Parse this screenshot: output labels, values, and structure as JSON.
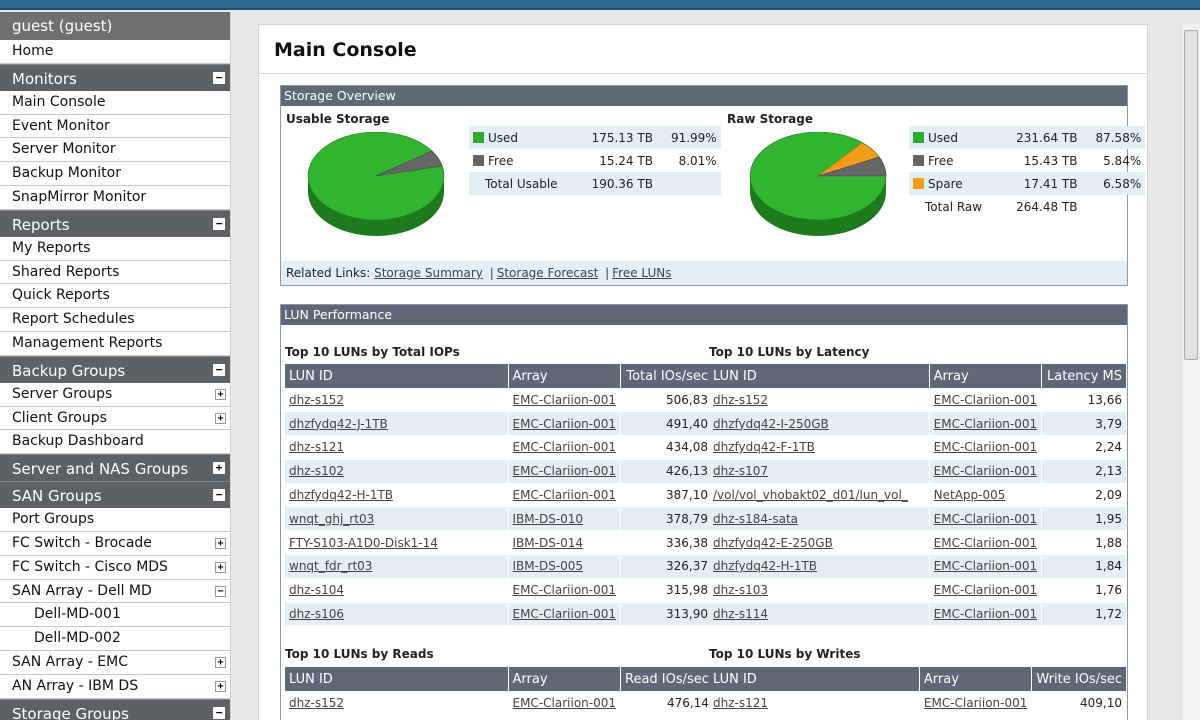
{
  "sidebar": {
    "user": "guest (guest)",
    "home": "Home",
    "monitors": {
      "title": "Monitors",
      "toggle": "−",
      "items": [
        "Main Console",
        "Event Monitor",
        "Server Monitor",
        "Backup Monitor",
        "SnapMirror Monitor"
      ]
    },
    "reports": {
      "title": "Reports",
      "toggle": "−",
      "items": [
        "My Reports",
        "Shared Reports",
        "Quick Reports",
        "Report Schedules",
        "Management Reports"
      ]
    },
    "backup_groups": {
      "title": "Backup Groups",
      "toggle": "−",
      "items": [
        {
          "label": "Server Groups",
          "toggle": "+"
        },
        {
          "label": "Client Groups",
          "toggle": "+"
        },
        {
          "label": "Backup Dashboard",
          "toggle": ""
        }
      ]
    },
    "server_nas": {
      "title": "Server and NAS Groups",
      "toggle": "+"
    },
    "san_groups": {
      "title": "SAN Groups",
      "toggle": "−",
      "items": [
        {
          "label": "Port Groups",
          "toggle": ""
        },
        {
          "label": "FC Switch - Brocade",
          "toggle": "+"
        },
        {
          "label": "FC Switch - Cisco MDS",
          "toggle": "+"
        },
        {
          "label": "SAN Array - Dell MD",
          "toggle": "−"
        },
        {
          "label": "Dell-MD-001",
          "toggle": "",
          "sub": true
        },
        {
          "label": "Dell-MD-002",
          "toggle": "",
          "sub": true
        },
        {
          "label": "SAN Array - EMC",
          "toggle": "+"
        },
        {
          "label": "AN Array - IBM DS",
          "toggle": "+"
        }
      ]
    },
    "storage_groups": {
      "title": "Storage Groups",
      "toggle": "−"
    }
  },
  "main": {
    "title": "Main Console",
    "storage": {
      "header": "Storage Overview",
      "usable": {
        "title": "Usable Storage",
        "rows": [
          {
            "label": "Used",
            "value": "175.13 TB",
            "pct": "91.99%",
            "color": "#2eaa2e"
          },
          {
            "label": "Free",
            "value": "15.24 TB",
            "pct": "8.01%",
            "color": "#666666"
          }
        ],
        "total_label": "Total Usable",
        "total_value": "190.36 TB"
      },
      "raw": {
        "title": "Raw Storage",
        "rows": [
          {
            "label": "Used",
            "value": "231.64 TB",
            "pct": "87.58%",
            "color": "#2eaa2e"
          },
          {
            "label": "Free",
            "value": "15.43 TB",
            "pct": "5.84%",
            "color": "#666666"
          },
          {
            "label": "Spare",
            "value": "17.41 TB",
            "pct": "6.58%",
            "color": "#f29d1c"
          }
        ],
        "total_label": "Total Raw",
        "total_value": "264.48 TB"
      },
      "related_label": "Related Links:",
      "links": [
        "Storage Summary",
        "Storage Forecast",
        "Free LUNs"
      ],
      "link_sep": "|"
    },
    "lun": {
      "header": "LUN Performance",
      "iops": {
        "title": "Top 10 LUNs by Total IOPs",
        "cols": [
          "LUN ID",
          "Array",
          "Total IOs/sec"
        ],
        "rows": [
          [
            "dhz-s152",
            "EMC-Clariion-001",
            "506,83"
          ],
          [
            "dhzfydq42-J-1TB",
            "EMC-Clariion-001",
            "491,40"
          ],
          [
            "dhz-s121",
            "EMC-Clariion-001",
            "434,08"
          ],
          [
            "dhz-s102",
            "EMC-Clariion-001",
            "426,13"
          ],
          [
            "dhzfydq42-H-1TB",
            "EMC-Clariion-001",
            "387,10"
          ],
          [
            "wnqt_ghj_rt03",
            "IBM-DS-010",
            "378,79"
          ],
          [
            "FTY-S103-A1D0-Disk1-14",
            "IBM-DS-014",
            "336,38"
          ],
          [
            "wnqt_fdr_rt03",
            "IBM-DS-005",
            "326,37"
          ],
          [
            "dhz-s104",
            "EMC-Clariion-001",
            "315,98"
          ],
          [
            "dhz-s106",
            "EMC-Clariion-001",
            "313,90"
          ]
        ]
      },
      "latency": {
        "title": "Top 10 LUNs by Latency",
        "cols": [
          "LUN ID",
          "Array",
          "Latency MS"
        ],
        "rows": [
          [
            "dhz-s152",
            "EMC-Clariion-001",
            "13,66"
          ],
          [
            "dhzfydq42-I-250GB",
            "EMC-Clariion-001",
            "3,79"
          ],
          [
            "dhzfydq42-F-1TB",
            "EMC-Clariion-001",
            "2,24"
          ],
          [
            "dhz-s107",
            "EMC-Clariion-001",
            "2,13"
          ],
          [
            "/vol/vol_vhobakt02_d01/lun_vol_",
            "NetApp-005",
            "2,09"
          ],
          [
            "dhz-s184-sata",
            "EMC-Clariion-001",
            "1,95"
          ],
          [
            "dhzfydq42-E-250GB",
            "EMC-Clariion-001",
            "1,88"
          ],
          [
            "dhzfydq42-H-1TB",
            "EMC-Clariion-001",
            "1,84"
          ],
          [
            "dhz-s103",
            "EMC-Clariion-001",
            "1,76"
          ],
          [
            "dhz-s114",
            "EMC-Clariion-001",
            "1,72"
          ]
        ]
      },
      "reads": {
        "title": "Top 10 LUNs by Reads",
        "cols": [
          "LUN ID",
          "Array",
          "Read IOs/sec"
        ],
        "rows": [
          [
            "dhz-s152",
            "EMC-Clariion-001",
            "476,14"
          ]
        ]
      },
      "writes": {
        "title": "Top 10 LUNs by Writes",
        "cols": [
          "LUN ID",
          "Array",
          "Write IOs/sec"
        ],
        "rows": [
          [
            "dhz-s121",
            "EMC-Clariion-001",
            "409,10"
          ]
        ]
      }
    }
  }
}
